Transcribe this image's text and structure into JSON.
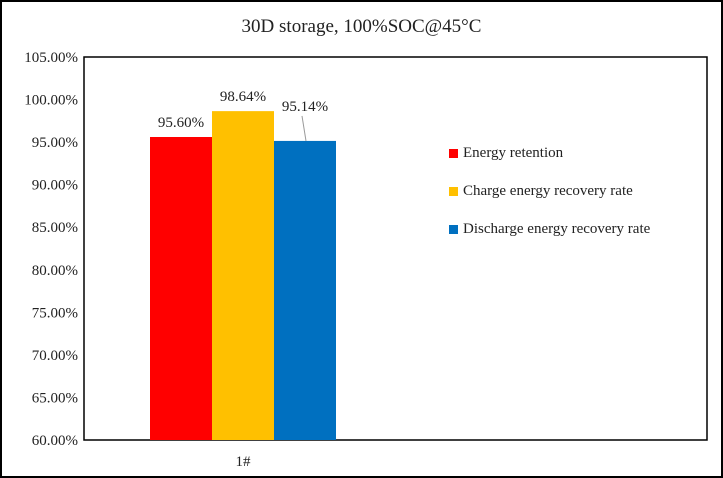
{
  "chart_data": {
    "type": "bar",
    "title": "30D storage, 100%SOC@45°C",
    "categories": [
      "1#"
    ],
    "series": [
      {
        "name": "Energy retention",
        "values": [
          95.6
        ],
        "label": "95.60%",
        "color": "#ff0000"
      },
      {
        "name": "Charge energy recovery rate",
        "values": [
          98.64
        ],
        "label": "98.64%",
        "color": "#ffc000"
      },
      {
        "name": "Discharge energy recovery rate",
        "values": [
          95.14
        ],
        "label": "95.14%",
        "color": "#0070c0"
      }
    ],
    "ylim": [
      60,
      105
    ],
    "yticks": [
      "60.00%",
      "65.00%",
      "70.00%",
      "75.00%",
      "80.00%",
      "85.00%",
      "90.00%",
      "95.00%",
      "100.00%",
      "105.00%"
    ],
    "ytick_values": [
      60,
      65,
      70,
      75,
      80,
      85,
      90,
      95,
      100,
      105
    ],
    "xlabel": "",
    "ylabel": "",
    "legend_position": "right",
    "grid": false
  }
}
